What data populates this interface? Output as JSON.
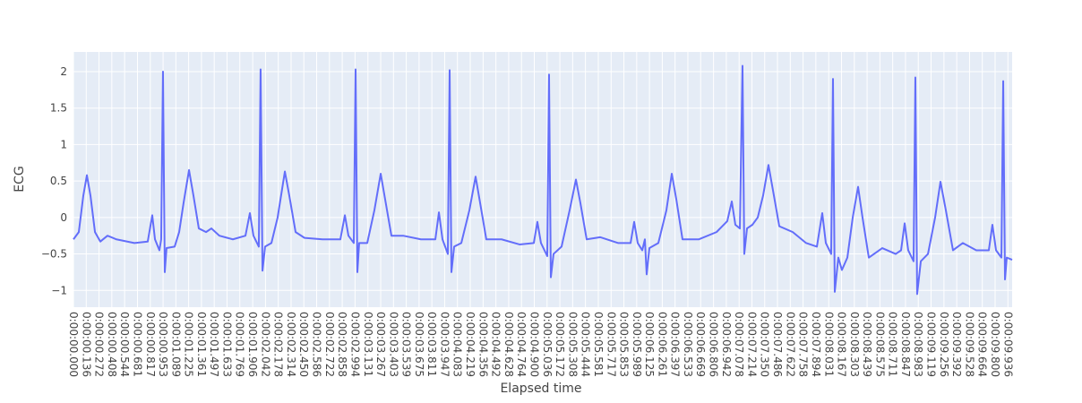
{
  "chart_data": {
    "type": "line",
    "x_title": "Elapsed time",
    "y_title": "ECG",
    "color": "#636efa",
    "grid": true,
    "x": [
      0,
      0.057,
      0.105,
      0.143,
      0.181,
      0.229,
      0.286,
      0.362,
      0.457,
      0.648,
      0.79,
      0.838,
      0.867,
      0.914,
      0.933,
      0.952,
      0.971,
      0.99,
      1.076,
      1.124,
      1.171,
      1.229,
      1.276,
      1.333,
      1.41,
      1.467,
      1.552,
      1.695,
      1.829,
      1.876,
      1.914,
      1.971,
      1.99,
      2.01,
      2.038,
      2.105,
      2.171,
      2.248,
      2.295,
      2.362,
      2.457,
      2.648,
      2.838,
      2.886,
      2.924,
      2.981,
      3.0,
      3.019,
      3.038,
      3.124,
      3.2,
      3.267,
      3.314,
      3.381,
      3.505,
      3.695,
      3.848,
      3.886,
      3.924,
      3.981,
      4.0,
      4.019,
      4.048,
      4.124,
      4.21,
      4.276,
      4.324,
      4.39,
      4.552,
      4.743,
      4.895,
      4.933,
      4.971,
      5.038,
      5.057,
      5.076,
      5.105,
      5.19,
      5.276,
      5.343,
      5.39,
      5.457,
      5.6,
      5.79,
      5.924,
      5.962,
      6.0,
      6.048,
      6.076,
      6.095,
      6.124,
      6.219,
      6.305,
      6.362,
      6.41,
      6.476,
      6.648,
      6.838,
      6.952,
      7.0,
      7.038,
      7.086,
      7.114,
      7.133,
      7.162,
      7.219,
      7.276,
      7.333,
      7.39,
      7.448,
      7.505,
      7.648,
      7.79,
      7.905,
      7.962,
      8.0,
      8.057,
      8.076,
      8.095,
      8.133,
      8.171,
      8.229,
      8.286,
      8.343,
      8.39,
      8.457,
      8.6,
      8.743,
      8.8,
      8.838,
      8.876,
      8.933,
      8.952,
      8.971,
      9.01,
      9.086,
      9.162,
      9.219,
      9.276,
      9.352,
      9.457,
      9.6,
      9.733,
      9.771,
      9.81,
      9.867,
      9.886,
      9.905,
      9.924,
      9.981
    ],
    "values": [
      -0.3,
      -0.2,
      0.3,
      0.58,
      0.3,
      -0.2,
      -0.33,
      -0.25,
      -0.3,
      -0.35,
      -0.33,
      0.03,
      -0.3,
      -0.45,
      -0.3,
      2.0,
      -0.75,
      -0.42,
      -0.4,
      -0.2,
      0.2,
      0.65,
      0.3,
      -0.15,
      -0.2,
      -0.15,
      -0.25,
      -0.3,
      -0.25,
      0.06,
      -0.25,
      -0.4,
      2.03,
      -0.73,
      -0.4,
      -0.35,
      0.0,
      0.63,
      0.3,
      -0.2,
      -0.28,
      -0.3,
      -0.3,
      0.03,
      -0.25,
      -0.35,
      2.03,
      -0.75,
      -0.35,
      -0.35,
      0.1,
      0.6,
      0.25,
      -0.25,
      -0.25,
      -0.3,
      -0.3,
      0.07,
      -0.3,
      -0.5,
      2.02,
      -0.75,
      -0.4,
      -0.35,
      0.1,
      0.56,
      0.2,
      -0.3,
      -0.3,
      -0.37,
      -0.35,
      -0.06,
      -0.35,
      -0.53,
      1.96,
      -0.82,
      -0.5,
      -0.4,
      0.1,
      0.52,
      0.2,
      -0.3,
      -0.27,
      -0.35,
      -0.35,
      -0.06,
      -0.35,
      -0.45,
      -0.3,
      -0.78,
      -0.42,
      -0.35,
      0.1,
      0.6,
      0.25,
      -0.3,
      -0.3,
      -0.2,
      -0.05,
      0.22,
      -0.1,
      -0.15,
      2.08,
      -0.5,
      -0.15,
      -0.1,
      0.0,
      0.3,
      0.72,
      0.3,
      -0.12,
      -0.2,
      -0.35,
      -0.4,
      0.06,
      -0.35,
      -0.5,
      1.9,
      -1.02,
      -0.55,
      -0.72,
      -0.55,
      0.0,
      0.42,
      0.0,
      -0.55,
      -0.42,
      -0.5,
      -0.45,
      -0.08,
      -0.45,
      -0.6,
      1.92,
      -1.05,
      -0.6,
      -0.5,
      0.0,
      0.49,
      0.1,
      -0.45,
      -0.35,
      -0.45,
      -0.45,
      -0.1,
      -0.45,
      -0.55,
      1.87,
      -0.85,
      -0.55,
      -0.58
    ],
    "xlim": [
      0,
      9.981
    ],
    "ylim": [
      -1.23,
      2.27
    ],
    "yticks": [
      2,
      1.5,
      1,
      0.5,
      0,
      {
        "value": -0.5,
        "label": "−0.5"
      },
      {
        "value": -1,
        "label": "−1"
      }
    ],
    "xticks": [
      {
        "value": 0,
        "label": "0:00:00.000"
      },
      {
        "value": 0.136,
        "label": "0:00:00.136"
      },
      {
        "value": 0.272,
        "label": "0:00:00.272"
      },
      {
        "value": 0.408,
        "label": "0:00:00.408"
      },
      {
        "value": 0.544,
        "label": "0:00:00.544"
      },
      {
        "value": 0.681,
        "label": "0:00:00.681"
      },
      {
        "value": 0.817,
        "label": "0:00:00.817"
      },
      {
        "value": 0.953,
        "label": "0:00:00.953"
      },
      {
        "value": 1.089,
        "label": "0:00:01.089"
      },
      {
        "value": 1.225,
        "label": "0:00:01.225"
      },
      {
        "value": 1.361,
        "label": "0:00:01.361"
      },
      {
        "value": 1.497,
        "label": "0:00:01.497"
      },
      {
        "value": 1.633,
        "label": "0:00:01.633"
      },
      {
        "value": 1.769,
        "label": "0:00:01.769"
      },
      {
        "value": 1.906,
        "label": "0:00:01.906"
      },
      {
        "value": 2.042,
        "label": "0:00:02.042"
      },
      {
        "value": 2.178,
        "label": "0:00:02.178"
      },
      {
        "value": 2.314,
        "label": "0:00:02.314"
      },
      {
        "value": 2.45,
        "label": "0:00:02.450"
      },
      {
        "value": 2.586,
        "label": "0:00:02.586"
      },
      {
        "value": 2.722,
        "label": "0:00:02.722"
      },
      {
        "value": 2.858,
        "label": "0:00:02.858"
      },
      {
        "value": 2.994,
        "label": "0:00:02.994"
      },
      {
        "value": 3.131,
        "label": "0:00:03.131"
      },
      {
        "value": 3.267,
        "label": "0:00:03.267"
      },
      {
        "value": 3.403,
        "label": "0:00:03.403"
      },
      {
        "value": 3.539,
        "label": "0:00:03.539"
      },
      {
        "value": 3.675,
        "label": "0:00:03.675"
      },
      {
        "value": 3.811,
        "label": "0:00:03.811"
      },
      {
        "value": 3.947,
        "label": "0:00:03.947"
      },
      {
        "value": 4.083,
        "label": "0:00:04.083"
      },
      {
        "value": 4.219,
        "label": "0:00:04.219"
      },
      {
        "value": 4.356,
        "label": "0:00:04.356"
      },
      {
        "value": 4.492,
        "label": "0:00:04.492"
      },
      {
        "value": 4.628,
        "label": "0:00:04.628"
      },
      {
        "value": 4.764,
        "label": "0:00:04.764"
      },
      {
        "value": 4.9,
        "label": "0:00:04.900"
      },
      {
        "value": 5.036,
        "label": "0:00:05.036"
      },
      {
        "value": 5.172,
        "label": "0:00:05.172"
      },
      {
        "value": 5.308,
        "label": "0:00:05.308"
      },
      {
        "value": 5.444,
        "label": "0:00:05.444"
      },
      {
        "value": 5.581,
        "label": "0:00:05.581"
      },
      {
        "value": 5.717,
        "label": "0:00:05.717"
      },
      {
        "value": 5.853,
        "label": "0:00:05.853"
      },
      {
        "value": 5.989,
        "label": "0:00:05.989"
      },
      {
        "value": 6.125,
        "label": "0:00:06.125"
      },
      {
        "value": 6.261,
        "label": "0:00:06.261"
      },
      {
        "value": 6.397,
        "label": "0:00:06.397"
      },
      {
        "value": 6.533,
        "label": "0:00:06.533"
      },
      {
        "value": 6.669,
        "label": "0:00:06.669"
      },
      {
        "value": 6.806,
        "label": "0:00:06.806"
      },
      {
        "value": 6.942,
        "label": "0:00:06.942"
      },
      {
        "value": 7.078,
        "label": "0:00:07.078"
      },
      {
        "value": 7.214,
        "label": "0:00:07.214"
      },
      {
        "value": 7.35,
        "label": "0:00:07.350"
      },
      {
        "value": 7.486,
        "label": "0:00:07.486"
      },
      {
        "value": 7.622,
        "label": "0:00:07.622"
      },
      {
        "value": 7.758,
        "label": "0:00:07.758"
      },
      {
        "value": 7.894,
        "label": "0:00:07.894"
      },
      {
        "value": 8.031,
        "label": "0:00:08.031"
      },
      {
        "value": 8.167,
        "label": "0:00:08.167"
      },
      {
        "value": 8.303,
        "label": "0:00:08.303"
      },
      {
        "value": 8.439,
        "label": "0:00:08.439"
      },
      {
        "value": 8.575,
        "label": "0:00:08.575"
      },
      {
        "value": 8.711,
        "label": "0:00:08.711"
      },
      {
        "value": 8.847,
        "label": "0:00:08.847"
      },
      {
        "value": 8.983,
        "label": "0:00:08.983"
      },
      {
        "value": 9.119,
        "label": "0:00:09.119"
      },
      {
        "value": 9.256,
        "label": "0:00:09.256"
      },
      {
        "value": 9.392,
        "label": "0:00:09.392"
      },
      {
        "value": 9.528,
        "label": "0:00:09.528"
      },
      {
        "value": 9.664,
        "label": "0:00:09.664"
      },
      {
        "value": 9.8,
        "label": "0:00:09.800"
      },
      {
        "value": 9.936,
        "label": "0:00:09.936"
      }
    ]
  }
}
